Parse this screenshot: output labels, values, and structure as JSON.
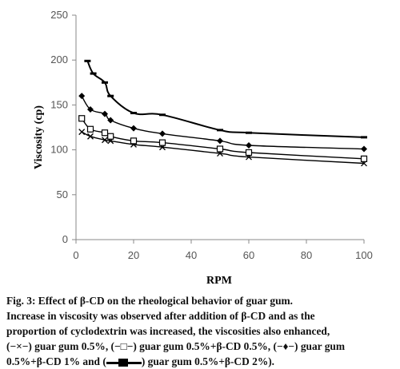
{
  "chart_data": {
    "type": "line",
    "xlabel": "RPM",
    "ylabel": "Viscosity (cp)",
    "xlim": [
      0,
      100
    ],
    "ylim": [
      0,
      250
    ],
    "xticks": [
      0,
      20,
      40,
      60,
      80,
      100
    ],
    "yticks": [
      0,
      50,
      100,
      150,
      200,
      250
    ],
    "grid": false,
    "series": [
      {
        "name": "guar gum 0.5%",
        "marker": "x",
        "x": [
          2,
          5,
          10,
          12,
          20,
          30,
          50,
          60,
          100
        ],
        "values": [
          120,
          115,
          111,
          110,
          106,
          103,
          96,
          92,
          85
        ]
      },
      {
        "name": "guar gum 0.5%+β-CD 0.5%",
        "marker": "square-open",
        "x": [
          2,
          5,
          10,
          12,
          20,
          30,
          50,
          60,
          100
        ],
        "values": [
          135,
          123,
          119,
          115,
          110,
          108,
          101,
          97,
          90
        ]
      },
      {
        "name": "guar gum 0.5%+β-CD 1%",
        "marker": "diamond",
        "x": [
          2,
          5,
          10,
          12,
          20,
          30,
          50,
          60,
          100
        ],
        "values": [
          160,
          145,
          140,
          133,
          124,
          118,
          110,
          105,
          101
        ]
      },
      {
        "name": "guar gum 0.5%+β-CD 2%",
        "marker": "dash",
        "x": [
          4,
          6,
          10,
          12,
          20,
          30,
          50,
          60,
          100
        ],
        "values": [
          199,
          185,
          175,
          160,
          141,
          139,
          122,
          119,
          114
        ]
      }
    ]
  },
  "caption": {
    "line1": "Fig. 3: Effect of β-CD on the rheological behavior of guar gum.",
    "line2": "Increase in viscosity was observed after addition of β-CD and as the",
    "line3": "proportion of cyclodextrin was increased, the viscosities also enhanced,",
    "l4_sym": "(−×−)",
    "l4_a": " guar gum 0.5%, ",
    "l4_sym2": "(−□−)",
    "l4_b": " guar gum 0.5%+β-CD 0.5%, ",
    "l4_sym3": "(−♦−)",
    "l4_c": " guar gum",
    "l5_a": "0.5%+β-CD 1% and ",
    "l5_open": "(",
    "l5_close": ")",
    "l5_b": " guar gum 0.5%+β-CD 2%)."
  }
}
